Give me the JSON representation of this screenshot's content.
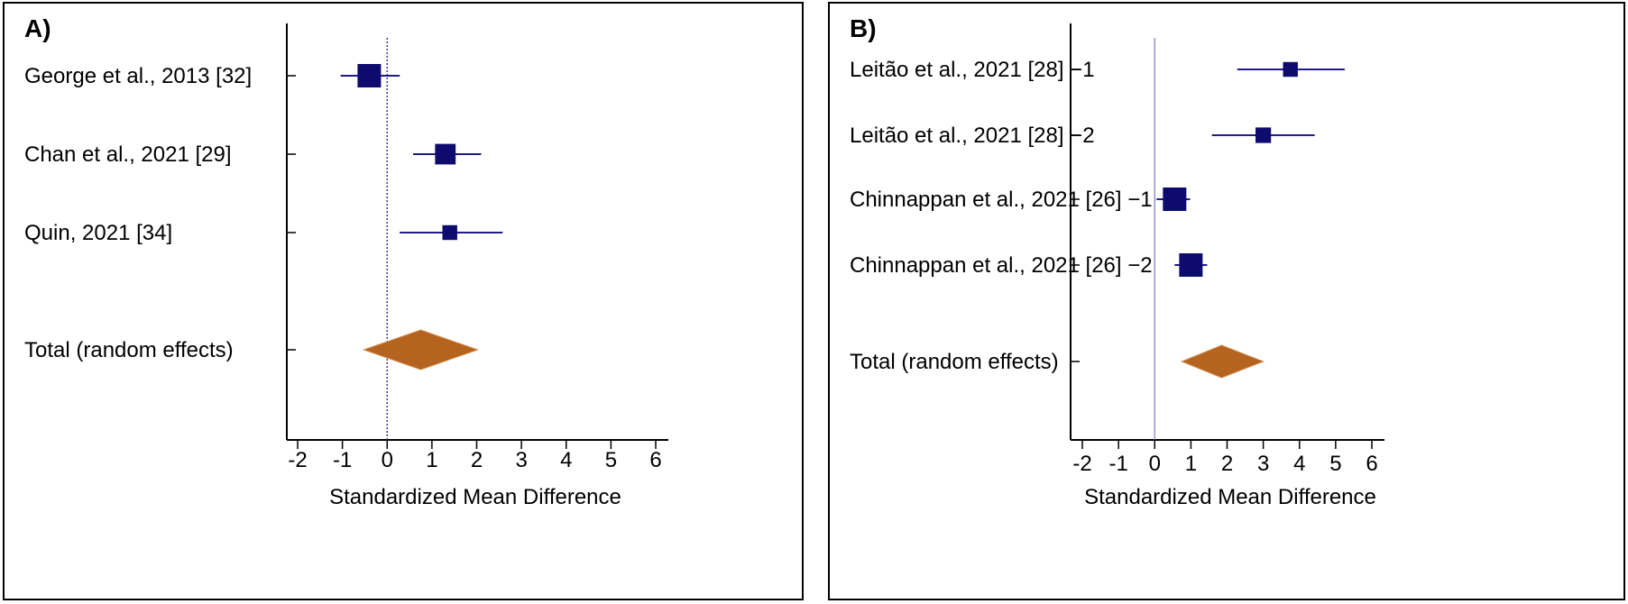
{
  "chart_data": [
    {
      "panel": "A)",
      "type": "forest",
      "xlabel": "Standardized Mean Difference",
      "xlim": [
        -2.2,
        6.2
      ],
      "x_ticks": [
        -2,
        -1,
        0,
        1,
        2,
        3,
        4,
        5,
        6
      ],
      "reference_line": {
        "x": 0,
        "style": "dotted"
      },
      "studies": [
        {
          "label": "George et al., 2013 [32]",
          "estimate": -0.4,
          "ci": [
            -1.04,
            0.28
          ],
          "weight": 1.0
        },
        {
          "label": "Chan et al., 2021 [29]",
          "estimate": 1.3,
          "ci": [
            0.58,
            2.1
          ],
          "weight": 0.8
        },
        {
          "label": "Quin, 2021 [34]",
          "estimate": 1.4,
          "ci": [
            0.28,
            2.58
          ],
          "weight": 0.4
        }
      ],
      "total": {
        "label": "Total (random effects)",
        "estimate": 0.75,
        "ci": [
          -0.52,
          2.02
        ]
      }
    },
    {
      "panel": "B)",
      "type": "forest",
      "xlabel": "Standardized Mean Difference",
      "xlim": [
        -2.2,
        6.2
      ],
      "x_ticks": [
        -2,
        -1,
        0,
        1,
        2,
        3,
        4,
        5,
        6
      ],
      "reference_line": {
        "x": 0,
        "style": "solid"
      },
      "studies": [
        {
          "label": "Leitão et al., 2021 [28] −1",
          "estimate": 3.75,
          "ci": [
            2.28,
            5.25
          ],
          "weight": 0.4
        },
        {
          "label": "Leitão et al., 2021 [28] −2",
          "estimate": 3.0,
          "ci": [
            1.58,
            4.42
          ],
          "weight": 0.45
        },
        {
          "label": "Chinnappan et al., 2021 [26] −1",
          "estimate": 0.55,
          "ci": [
            0.05,
            0.98
          ],
          "weight": 1.0
        },
        {
          "label": "Chinnappan et al., 2021 [26] −2",
          "estimate": 1.0,
          "ci": [
            0.55,
            1.45
          ],
          "weight": 1.0
        }
      ],
      "total": {
        "label": "Total (random effects)",
        "estimate": 1.85,
        "ci": [
          0.75,
          3.0
        ]
      }
    }
  ],
  "colors": {
    "marker": "#0d0b6e",
    "ci_line": "#1f1c8a",
    "diamond": "#b5641f",
    "ref_dotted": "#3a3aa0",
    "ref_solid": "#7a78c8",
    "axis": "#000000"
  }
}
